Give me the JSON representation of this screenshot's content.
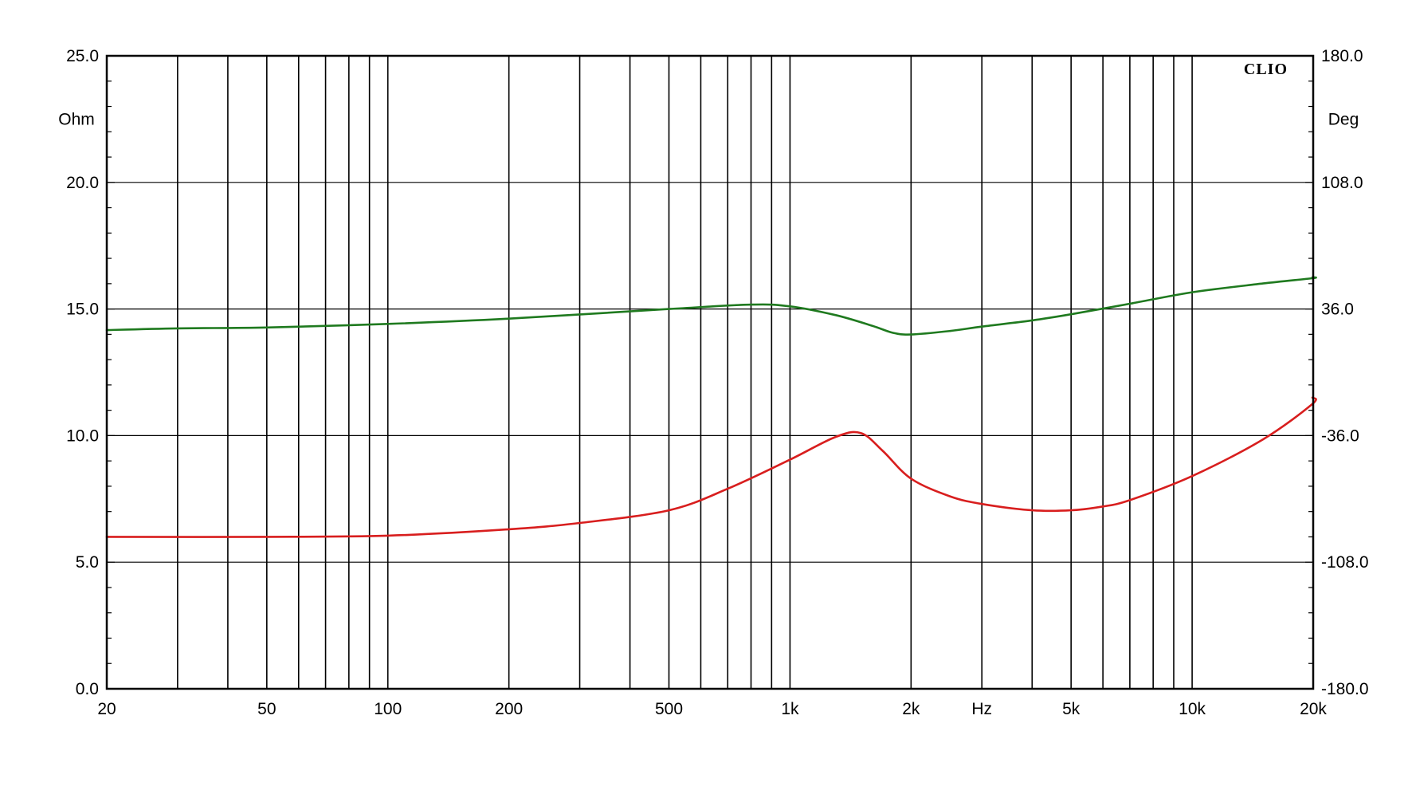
{
  "chart_data": {
    "type": "line",
    "brand": "CLIO",
    "xlabel": "Hz",
    "x_scale": "log",
    "xlim": [
      20,
      20000
    ],
    "x_ticks": [
      {
        "value": 20,
        "label": "20"
      },
      {
        "value": 50,
        "label": "50"
      },
      {
        "value": 100,
        "label": "100"
      },
      {
        "value": 200,
        "label": "200"
      },
      {
        "value": 500,
        "label": "500"
      },
      {
        "value": 1000,
        "label": "1k"
      },
      {
        "value": 2000,
        "label": "2k"
      },
      {
        "value": 5000,
        "label": "5k"
      },
      {
        "value": 10000,
        "label": "10k"
      },
      {
        "value": 20000,
        "label": "20k"
      }
    ],
    "ylabel_left": "Ohm",
    "ylim_left": [
      0,
      25
    ],
    "y_ticks_left": [
      "0.0",
      "5.0",
      "10.0",
      "15.0",
      "20.0",
      "25.0"
    ],
    "ylabel_right": "Deg",
    "ylim_right": [
      -180,
      180
    ],
    "y_ticks_right": [
      "-180.0",
      "-108.0",
      "-36.0",
      "36.0",
      "108.0",
      "180.0"
    ],
    "grid": true,
    "series": [
      {
        "axis": "left",
        "color": "#d81e1e",
        "points": [
          [
            20,
            6.0
          ],
          [
            50,
            6.0
          ],
          [
            100,
            6.05
          ],
          [
            200,
            6.3
          ],
          [
            300,
            6.55
          ],
          [
            500,
            7.05
          ],
          [
            700,
            7.9
          ],
          [
            1000,
            9.05
          ],
          [
            1300,
            9.95
          ],
          [
            1500,
            10.1
          ],
          [
            1700,
            9.4
          ],
          [
            2000,
            8.3
          ],
          [
            2500,
            7.6
          ],
          [
            3000,
            7.3
          ],
          [
            4000,
            7.05
          ],
          [
            5000,
            7.05
          ],
          [
            6000,
            7.2
          ],
          [
            7000,
            7.45
          ],
          [
            10000,
            8.4
          ],
          [
            15000,
            9.85
          ],
          [
            20000,
            11.25
          ],
          [
            21000,
            11.5
          ]
        ]
      },
      {
        "axis": "right",
        "color": "#1f7a1f",
        "points": [
          [
            20,
            24.0
          ],
          [
            30,
            25.0
          ],
          [
            50,
            25.5
          ],
          [
            100,
            27.5
          ],
          [
            200,
            30.5
          ],
          [
            500,
            36.0
          ],
          [
            800,
            38.5
          ],
          [
            1000,
            37.5
          ],
          [
            1300,
            32.5
          ],
          [
            1600,
            26.5
          ],
          [
            1800,
            22.5
          ],
          [
            2000,
            21.5
          ],
          [
            2500,
            23.5
          ],
          [
            3000,
            26.0
          ],
          [
            4000,
            29.5
          ],
          [
            5000,
            33.0
          ],
          [
            7000,
            39.0
          ],
          [
            10000,
            45.5
          ],
          [
            15000,
            50.5
          ],
          [
            20000,
            53.5
          ],
          [
            21000,
            54.0
          ]
        ]
      }
    ]
  }
}
